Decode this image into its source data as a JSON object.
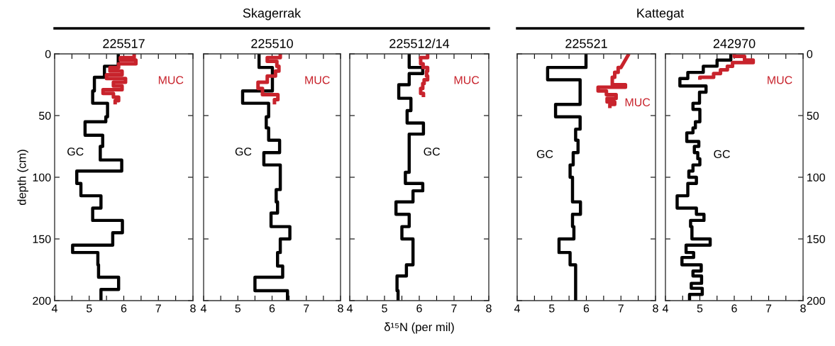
{
  "chart_data": [
    {
      "type": "line",
      "title": "225517",
      "ylabel": "depth (cm)",
      "annotations": [
        "Skagerrak"
      ],
      "xlim": [
        4,
        8
      ],
      "xticks": [
        4,
        {
          "value": 4.5,
          "label": null
        },
        5,
        {
          "value": 5.5,
          "label": null
        },
        6,
        {
          "value": 6.5,
          "label": null
        },
        7,
        {
          "value": 7.5,
          "label": null
        },
        8
      ],
      "ylim": [
        200,
        0
      ],
      "yticks": [
        0,
        50,
        100,
        150,
        200
      ],
      "series": [
        {
          "name": "GC",
          "color": "#000000",
          "x": [
            5.84,
            5.84,
            5.44,
            5.44,
            5.15,
            5.15,
            5.1,
            5.1,
            5.53,
            5.53,
            5.48,
            5.48,
            4.88,
            4.88,
            5.39,
            5.39,
            5.32,
            5.32,
            5.94,
            5.94,
            4.64,
            4.64,
            4.76,
            4.76,
            5.34,
            5.34,
            5.1,
            5.1,
            5.96,
            5.96,
            5.68,
            5.68,
            4.52,
            4.52,
            5.25,
            5.25,
            5.27,
            5.27,
            5.85,
            5.85,
            5.34,
            5.34
          ],
          "values": [
            0,
            10,
            10,
            19,
            19,
            30,
            30,
            40,
            40,
            51,
            51,
            55,
            55,
            66,
            66,
            75,
            75,
            86,
            86,
            95,
            95,
            105,
            105,
            115,
            115,
            125,
            125,
            135,
            135,
            145,
            145,
            155,
            155,
            161,
            161,
            171,
            171,
            181,
            181,
            191,
            191,
            200
          ]
        },
        {
          "name": "MUC",
          "color": "#c8232c",
          "x": [
            6.3,
            6.3,
            5.9,
            5.9,
            6.35,
            6.35,
            5.85,
            5.85,
            5.6,
            5.6,
            5.95,
            5.95,
            5.5,
            5.5,
            6.05,
            6.05,
            5.7,
            5.7,
            5.95,
            5.95,
            5.4,
            5.4,
            5.7,
            5.7,
            5.85,
            5.85,
            5.75,
            5.75
          ],
          "values": [
            0,
            3,
            3,
            5,
            5,
            8,
            8,
            11,
            11,
            14,
            14,
            17,
            17,
            20,
            20,
            23,
            23,
            26,
            26,
            29,
            29,
            32,
            32,
            35,
            35,
            38,
            38,
            41
          ]
        }
      ]
    },
    {
      "type": "line",
      "title": "225510",
      "tick_labels": "x",
      "xlim": [
        4,
        8
      ],
      "xticks": [
        4,
        {
          "value": 4.5,
          "label": null
        },
        5,
        {
          "value": 5.5,
          "label": null
        },
        6,
        {
          "value": 6.5,
          "label": null
        },
        7,
        {
          "value": 7.5,
          "label": null
        },
        8
      ],
      "ylim": [
        200,
        0
      ],
      "yticks": [
        0,
        50,
        100,
        150,
        200
      ],
      "series": [
        {
          "name": "GC",
          "color": "#000000",
          "x": [
            5.62,
            5.62,
            6.01,
            6.01,
            5.14,
            5.14,
            5.9,
            5.9,
            5.83,
            5.83,
            5.9,
            5.9,
            6.22,
            6.22,
            5.76,
            5.76,
            6.24,
            6.24,
            6.12,
            6.12,
            6.16,
            6.16,
            5.97,
            5.97,
            6.52,
            6.52,
            6.24,
            6.24,
            6.16,
            6.16,
            6.31,
            6.31,
            5.5,
            5.5,
            6.45,
            6.45
          ],
          "values": [
            0,
            11,
            11,
            30,
            30,
            40,
            40,
            51,
            51,
            60,
            60,
            70,
            70,
            80,
            80,
            90,
            90,
            110,
            110,
            120,
            120,
            129,
            129,
            140,
            140,
            150,
            150,
            161,
            161,
            172,
            172,
            181,
            181,
            192,
            192,
            200
          ]
        },
        {
          "name": "MUC",
          "color": "#c8232c",
          "x": [
            6.24,
            6.24,
            5.86,
            5.86,
            6.14,
            6.14,
            6.2,
            6.2,
            6.1,
            6.1,
            5.86,
            5.86,
            5.59,
            5.59,
            5.72,
            5.72,
            6.17,
            6.17,
            6.07,
            6.07
          ],
          "values": [
            0,
            3,
            3,
            6,
            6,
            10,
            10,
            14,
            14,
            18,
            18,
            23,
            23,
            28,
            28,
            33,
            33,
            37,
            37,
            41
          ]
        }
      ]
    },
    {
      "type": "line",
      "title": "225512/14",
      "xlabel": "δ¹⁵N (per mil)",
      "tick_labels": "x",
      "xlim": [
        4,
        8
      ],
      "xticks": [
        4,
        {
          "value": 4.5,
          "label": null
        },
        5,
        {
          "value": 5.5,
          "label": null
        },
        6,
        {
          "value": 6.5,
          "label": null
        },
        7,
        {
          "value": 7.5,
          "label": null
        },
        8
      ],
      "ylim": [
        200,
        0
      ],
      "yticks": [
        0,
        50,
        100,
        150,
        200
      ],
      "series": [
        {
          "name": "GC",
          "color": "#000000",
          "x": [
            5.71,
            5.71,
            6.1,
            6.1,
            5.71,
            5.71,
            5.41,
            5.41,
            5.76,
            5.76,
            5.65,
            5.65,
            6.12,
            6.12,
            5.71,
            5.71,
            5.6,
            5.6,
            6.1,
            6.1,
            5.82,
            5.82,
            5.33,
            5.33,
            5.71,
            5.71,
            5.5,
            5.5,
            5.82,
            5.82,
            5.63,
            5.63,
            5.36,
            5.36,
            5.39,
            5.39
          ],
          "values": [
            0,
            11,
            11,
            16,
            16,
            25,
            25,
            36,
            36,
            46,
            46,
            56,
            56,
            65,
            65,
            96,
            96,
            105,
            105,
            111,
            111,
            120,
            120,
            130,
            130,
            140,
            140,
            150,
            150,
            171,
            171,
            180,
            180,
            192,
            192,
            200
          ]
        },
        {
          "name": "MUC",
          "color": "#c8232c",
          "x": [
            6.24,
            6.24,
            6.04,
            6.04,
            6.11,
            6.11,
            6.24,
            6.24,
            6.21,
            6.21,
            6.24,
            6.24,
            6.14,
            6.14,
            6.1,
            6.1,
            6.04,
            6.04,
            6.12,
            6.12
          ],
          "values": [
            0,
            3,
            3,
            8,
            8,
            11,
            11,
            14,
            14,
            18,
            18,
            21,
            21,
            24,
            24,
            28,
            28,
            32,
            32,
            35
          ]
        }
      ]
    },
    {
      "type": "line",
      "title": "225521",
      "annotations": [
        "Kattegat"
      ],
      "tick_labels": "x",
      "xlim": [
        4,
        8
      ],
      "xticks": [
        4,
        {
          "value": 4.5,
          "label": null
        },
        5,
        {
          "value": 5.5,
          "label": null
        },
        6,
        {
          "value": 6.5,
          "label": null
        },
        7,
        {
          "value": 7.5,
          "label": null
        },
        8
      ],
      "ylim": [
        200,
        0
      ],
      "yticks": [
        0,
        50,
        100,
        150,
        200
      ],
      "series": [
        {
          "name": "GC",
          "color": "#000000",
          "x": [
            5.99,
            5.99,
            4.88,
            4.88,
            5.82,
            5.82,
            5.11,
            5.11,
            5.82,
            5.82,
            5.69,
            5.69,
            5.76,
            5.76,
            5.62,
            5.62,
            5.53,
            5.53,
            5.6,
            5.6,
            5.83,
            5.83,
            5.6,
            5.6,
            5.64,
            5.64,
            5.21,
            5.21,
            5.53,
            5.53,
            5.69,
            5.69
          ],
          "values": [
            0,
            11,
            11,
            21,
            21,
            41,
            41,
            51,
            51,
            61,
            61,
            70,
            70,
            80,
            80,
            90,
            90,
            100,
            100,
            120,
            120,
            130,
            130,
            140,
            140,
            150,
            150,
            161,
            161,
            171,
            171,
            200
          ]
        },
        {
          "name": "MUC",
          "color": "#c8232c",
          "x": [
            7.23,
            7.0,
            6.92,
            6.92,
            6.82,
            6.82,
            6.75,
            6.75,
            7.13,
            7.13,
            6.34,
            6.34,
            6.58,
            6.58,
            6.86,
            6.86,
            6.6,
            6.6,
            6.82,
            6.82,
            6.68,
            6.68
          ],
          "values": [
            0,
            11,
            11,
            15,
            15,
            19,
            19,
            25,
            25,
            27,
            27,
            30,
            30,
            33,
            33,
            36,
            36,
            39,
            39,
            41,
            41,
            44
          ]
        }
      ]
    },
    {
      "type": "line",
      "title": "242970",
      "xlim": [
        4,
        8
      ],
      "xticks": [
        4,
        {
          "value": 4.5,
          "label": null
        },
        5,
        {
          "value": 5.5,
          "label": null
        },
        6,
        {
          "value": 6.5,
          "label": null
        },
        7,
        {
          "value": 7.5,
          "label": null
        },
        8
      ],
      "ylim": [
        200,
        0
      ],
      "yticks": [
        0,
        50,
        100,
        150,
        200
      ],
      "series": [
        {
          "name": "GC",
          "color": "#000000",
          "x": [
            5.9,
            5.9,
            5.5,
            5.5,
            5.1,
            5.1,
            4.65,
            4.65,
            4.42,
            4.42,
            5.18,
            5.18,
            4.99,
            4.99,
            4.8,
            4.8,
            5.0,
            5.0,
            4.87,
            4.87,
            4.8,
            4.8,
            4.62,
            4.62,
            4.97,
            4.97,
            4.84,
            4.84,
            4.94,
            4.94,
            5.0,
            5.0,
            4.8,
            4.8,
            4.68,
            4.68,
            4.9,
            4.9,
            4.65,
            4.65,
            4.34,
            4.34,
            4.9,
            4.9,
            5.12,
            5.12,
            4.73,
            4.73,
            4.77,
            4.77,
            5.3,
            5.3,
            4.6,
            4.6,
            4.82,
            4.82,
            4.48,
            4.48,
            5.04,
            5.04,
            4.8,
            4.8,
            5.05,
            5.05,
            4.75,
            4.75,
            5.07,
            5.07,
            4.7,
            4.7
          ],
          "values": [
            0,
            5,
            5,
            10,
            10,
            15,
            15,
            20,
            20,
            26,
            26,
            31,
            31,
            40,
            40,
            45,
            45,
            55,
            55,
            60,
            60,
            64,
            64,
            71,
            71,
            75,
            75,
            80,
            80,
            85,
            85,
            90,
            90,
            95,
            95,
            100,
            100,
            105,
            105,
            115,
            115,
            125,
            125,
            130,
            130,
            135,
            135,
            140,
            140,
            150,
            150,
            155,
            155,
            161,
            161,
            165,
            165,
            171,
            171,
            176,
            176,
            180,
            180,
            186,
            186,
            190,
            190,
            195,
            195,
            200
          ]
        },
        {
          "name": "MUC",
          "color": "#c8232c",
          "x": [
            6.0,
            6.0,
            6.3,
            6.3,
            6.55,
            6.55,
            5.95,
            5.95,
            5.8,
            5.8,
            5.6,
            5.6,
            5.4,
            5.4,
            5.0,
            5.0
          ],
          "values": [
            0,
            2,
            2,
            5,
            5,
            7,
            7,
            10,
            10,
            13,
            13,
            16,
            16,
            19,
            19,
            21
          ]
        }
      ]
    }
  ]
}
